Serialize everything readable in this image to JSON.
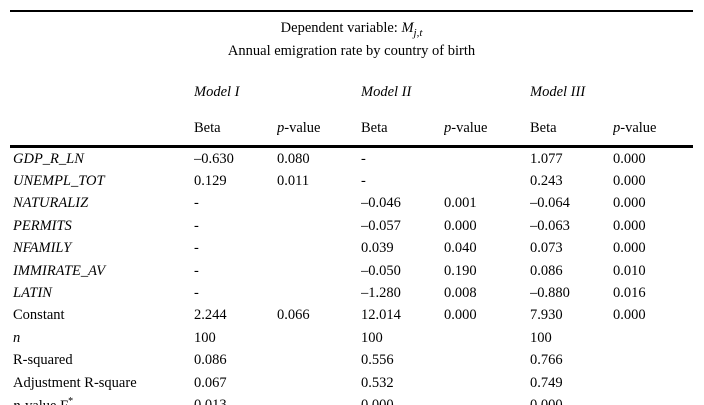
{
  "page": {
    "background": "#ffffff",
    "text_color": "#000000"
  },
  "table": {
    "title_parts": [
      {
        "text": "Dependent variable: ",
        "style": "roman"
      },
      {
        "text": "M",
        "style": "italic"
      },
      {
        "text": "j,t",
        "style": "subscript-italic"
      }
    ],
    "subtitle": "Annual emigration rate by country of birth",
    "model_headers": [
      "Model I",
      "Model II",
      "Model III"
    ],
    "column_header": {
      "beta": "Beta",
      "p_italic": "p",
      "p_rest": "-value"
    },
    "rows": [
      {
        "label_parts": [
          {
            "text": "GDP_R_LN",
            "style": "italic"
          }
        ],
        "cells": [
          "–0.630",
          "0.080",
          "-",
          "",
          "1.077",
          "0.000"
        ]
      },
      {
        "label_parts": [
          {
            "text": "UNEMPL_TOT",
            "style": "italic"
          }
        ],
        "cells": [
          "0.129",
          "0.011",
          "-",
          "",
          "0.243",
          "0.000"
        ]
      },
      {
        "label_parts": [
          {
            "text": "NATURALIZ",
            "style": "italic"
          }
        ],
        "cells": [
          "-",
          "",
          "–0.046",
          "0.001",
          "–0.064",
          "0.000"
        ]
      },
      {
        "label_parts": [
          {
            "text": "PERMITS",
            "style": "italic"
          }
        ],
        "cells": [
          "-",
          "",
          "–0.057",
          "0.000",
          "–0.063",
          "0.000"
        ]
      },
      {
        "label_parts": [
          {
            "text": "NFAMILY",
            "style": "italic"
          }
        ],
        "cells": [
          "-",
          "",
          "0.039",
          "0.040",
          "0.073",
          "0.000"
        ]
      },
      {
        "label_parts": [
          {
            "text": "IMMIRATE_AV",
            "style": "italic"
          }
        ],
        "cells": [
          "-",
          "",
          "–0.050",
          "0.190",
          "0.086",
          "0.010"
        ]
      },
      {
        "label_parts": [
          {
            "text": "LATIN",
            "style": "italic"
          }
        ],
        "cells": [
          "-",
          "",
          "–1.280",
          "0.008",
          "–0.880",
          "0.016"
        ]
      },
      {
        "label_parts": [
          {
            "text": "Constant",
            "style": "roman"
          }
        ],
        "cells": [
          "2.244",
          "0.066",
          "12.014",
          "0.000",
          "7.930",
          "0.000"
        ]
      },
      {
        "label_parts": [
          {
            "text": "n",
            "style": "italic"
          }
        ],
        "cells": [
          "100",
          "",
          "100",
          "",
          "100",
          ""
        ]
      },
      {
        "label_parts": [
          {
            "text": "R-squared",
            "style": "roman"
          }
        ],
        "cells": [
          "0.086",
          "",
          "0.556",
          "",
          "0.766",
          ""
        ]
      },
      {
        "label_parts": [
          {
            "text": "Adjustment R-square",
            "style": "roman"
          }
        ],
        "cells": [
          "0.067",
          "",
          "0.532",
          "",
          "0.749",
          ""
        ]
      },
      {
        "label_parts": [
          {
            "text": "p",
            "style": "italic"
          },
          {
            "text": "-value F",
            "style": "roman"
          },
          {
            "text": "*",
            "style": "superscript"
          }
        ],
        "cells": [
          "0.013",
          "",
          "0.000",
          "",
          "0.000",
          ""
        ]
      }
    ]
  }
}
